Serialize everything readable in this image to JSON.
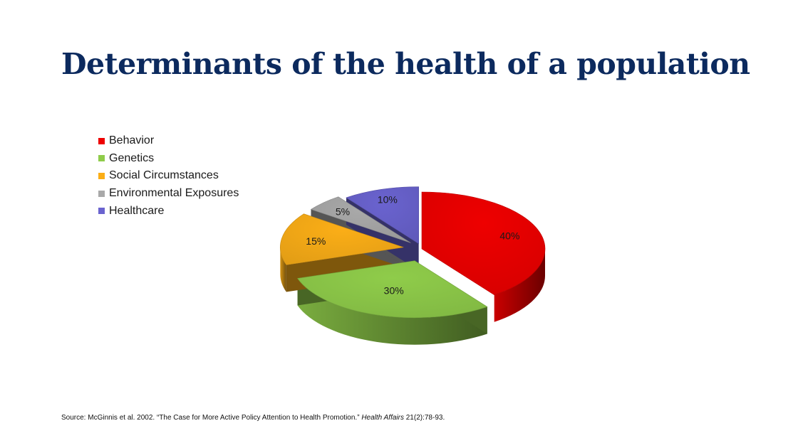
{
  "slide": {
    "title": "Determinants of the health of a population"
  },
  "chart_data": {
    "type": "pie",
    "categories": [
      "Behavior",
      "Genetics",
      "Social Circumstances",
      "Environmental Exposures",
      "Healthcare"
    ],
    "values": [
      40,
      30,
      15,
      5,
      10
    ],
    "labels": [
      "40%",
      "30%",
      "15%",
      "5%",
      "10%"
    ],
    "colors": [
      "#ee0000",
      "#8fcc4a",
      "#fbae17",
      "#a9a9a9",
      "#6a63cf"
    ],
    "style": "3d-exploded",
    "legend_position": "top-left"
  },
  "source": {
    "prefix": "Source: McGinnis et al. 2002. “The Case for More Active Policy Attention to Health Promotion.” ",
    "journal": "Health Affairs",
    "suffix": " 21(2):78-93."
  }
}
